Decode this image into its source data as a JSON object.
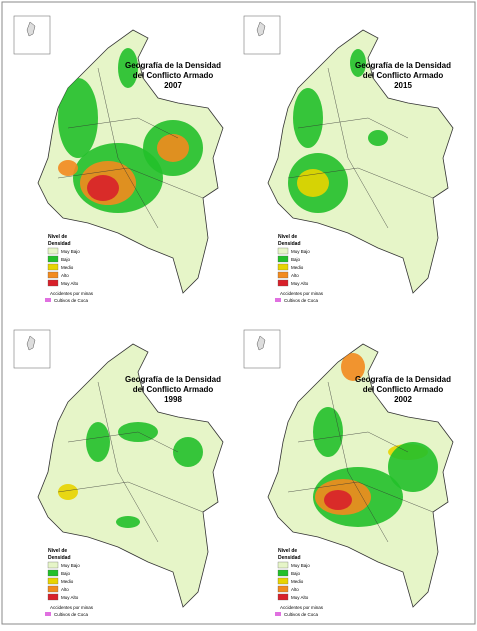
{
  "panels": [
    {
      "title": [
        "Geografía de la Densidad",
        "del Conflicto Armado",
        "2007"
      ]
    },
    {
      "title": [
        "Geografía de la Densidad",
        "del Conflicto Armado",
        "2015"
      ]
    },
    {
      "title": [
        "Geografía de la Densidad",
        "del Conflicto Armado",
        "1998"
      ]
    },
    {
      "title": [
        "Geografía de la Densidad",
        "del Conflicto Armado",
        "2002"
      ]
    }
  ],
  "legend": {
    "title": [
      "Nivel de",
      "Densidad"
    ],
    "levels": [
      {
        "name": "Muy Bajo",
        "color": "#e6f5c8"
      },
      {
        "name": "Bajo",
        "color": "#22c02a"
      },
      {
        "name": "Medio",
        "color": "#e8d400"
      },
      {
        "name": "Alto",
        "color": "#f28a1e"
      },
      {
        "name": "Muy Alto",
        "color": "#d8202a"
      }
    ],
    "mines": "Accidentes por minas",
    "coca": "Cultivos de Coca"
  }
}
